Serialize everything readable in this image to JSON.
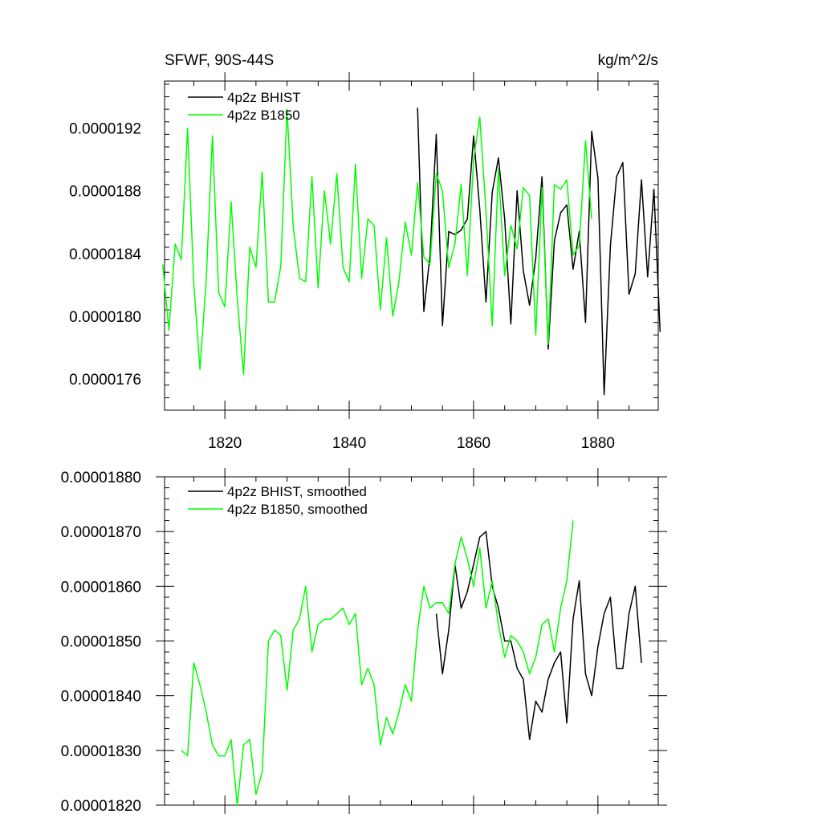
{
  "chart_data": [
    {
      "type": "line",
      "title_left": "SFWF, 90S-44S",
      "title_right": "kg/m^2/s",
      "xlim": [
        1810.3,
        1889.7
      ],
      "ylim": [
        1.74e-05,
        1.95e-05
      ],
      "x_ticks": [
        1820,
        1840,
        1860,
        1880
      ],
      "x_tick_labels": [
        "1820",
        "1840",
        "1860",
        "1880"
      ],
      "y_ticks": [
        1.76e-05,
        1.8e-05,
        1.84e-05,
        1.88e-05,
        1.92e-05
      ],
      "y_tick_labels": [
        "0.0000176",
        "0.0000180",
        "0.0000184",
        "0.0000188",
        "0.0000192"
      ],
      "legend": [
        "4p2z BHIST",
        "4p2z B1850"
      ],
      "legend_position": "top-left",
      "series": [
        {
          "name": "4p2z BHIST",
          "color": "#000000",
          "x": [
            1851,
            1852,
            1853,
            1854,
            1855,
            1856,
            1857,
            1858,
            1859,
            1860,
            1861,
            1862,
            1863,
            1864,
            1865,
            1866,
            1867,
            1868,
            1869,
            1870,
            1871,
            1872,
            1873,
            1874,
            1875,
            1876,
            1877,
            1878,
            1879,
            1880,
            1881,
            1882,
            1883,
            1884,
            1885,
            1886,
            1887,
            1888,
            1889,
            1890
          ],
          "y": [
            1.933e-05,
            1.803e-05,
            1.839e-05,
            1.916e-05,
            1.794e-05,
            1.854e-05,
            1.852e-05,
            1.855e-05,
            1.862e-05,
            1.915e-05,
            1.868e-05,
            1.809e-05,
            1.879e-05,
            1.901e-05,
            1.862e-05,
            1.795e-05,
            1.88e-05,
            1.829e-05,
            1.807e-05,
            1.837e-05,
            1.889e-05,
            1.779e-05,
            1.848e-05,
            1.866e-05,
            1.871e-05,
            1.83e-05,
            1.854e-05,
            1.796e-05,
            1.918e-05,
            1.888e-05,
            1.75e-05,
            1.845e-05,
            1.889e-05,
            1.898e-05,
            1.814e-05,
            1.827e-05,
            1.887e-05,
            1.825e-05,
            1.881e-05,
            1.79e-05
          ]
        },
        {
          "name": "4p2z B1850",
          "color": "#00ff00",
          "x": [
            1810,
            1811,
            1812,
            1813,
            1814,
            1815,
            1816,
            1817,
            1818,
            1819,
            1820,
            1821,
            1822,
            1823,
            1824,
            1825,
            1826,
            1827,
            1828,
            1829,
            1830,
            1831,
            1832,
            1833,
            1834,
            1835,
            1836,
            1837,
            1838,
            1839,
            1840,
            1841,
            1842,
            1843,
            1844,
            1845,
            1846,
            1847,
            1848,
            1849,
            1850,
            1851,
            1852,
            1853,
            1854,
            1855,
            1856,
            1857,
            1858,
            1859,
            1860,
            1861,
            1862,
            1863,
            1864,
            1865,
            1866,
            1867,
            1868,
            1869,
            1870,
            1871,
            1872,
            1873,
            1874,
            1875,
            1876,
            1877,
            1878,
            1879
          ],
          "y": [
            1.833e-05,
            1.791e-05,
            1.846e-05,
            1.836e-05,
            1.92e-05,
            1.821e-05,
            1.766e-05,
            1.823e-05,
            1.915e-05,
            1.815e-05,
            1.806e-05,
            1.873e-05,
            1.811e-05,
            1.763e-05,
            1.844e-05,
            1.831e-05,
            1.892e-05,
            1.809e-05,
            1.809e-05,
            1.832e-05,
            1.932e-05,
            1.857e-05,
            1.824e-05,
            1.822e-05,
            1.889e-05,
            1.818e-05,
            1.88e-05,
            1.846e-05,
            1.891e-05,
            1.831e-05,
            1.822e-05,
            1.897e-05,
            1.824e-05,
            1.862e-05,
            1.858e-05,
            1.804e-05,
            1.85e-05,
            1.8e-05,
            1.822e-05,
            1.86e-05,
            1.839e-05,
            1.885e-05,
            1.838e-05,
            1.833e-05,
            1.891e-05,
            1.88e-05,
            1.831e-05,
            1.846e-05,
            1.884e-05,
            1.826e-05,
            1.9e-05,
            1.927e-05,
            1.867e-05,
            1.794e-05,
            1.894e-05,
            1.826e-05,
            1.858e-05,
            1.843e-05,
            1.882e-05,
            1.877e-05,
            1.788e-05,
            1.882e-05,
            1.782e-05,
            1.884e-05,
            1.881e-05,
            1.887e-05,
            1.839e-05,
            1.845e-05,
            1.912e-05,
            1.862e-05
          ]
        }
      ]
    },
    {
      "type": "line",
      "xlim": [
        1810.3,
        1889.7
      ],
      "ylim": [
        1.82e-05,
        1.88e-05
      ],
      "x_ticks": [
        1820,
        1840,
        1860,
        1880
      ],
      "y_ticks": [
        1.82e-05,
        1.83e-05,
        1.84e-05,
        1.85e-05,
        1.86e-05,
        1.87e-05,
        1.88e-05
      ],
      "y_tick_labels": [
        "0.00001820",
        "0.00001830",
        "0.00001840",
        "0.00001850",
        "0.00001860",
        "0.00001870",
        "0.00001880"
      ],
      "legend": [
        "4p2z BHIST, smoothed",
        "4p2z B1850, smoothed"
      ],
      "legend_position": "top-left",
      "series": [
        {
          "name": "4p2z BHIST, smoothed",
          "color": "#000000",
          "x": [
            1854,
            1855,
            1856,
            1857,
            1858,
            1859,
            1860,
            1861,
            1862,
            1863,
            1864,
            1865,
            1866,
            1867,
            1868,
            1869,
            1870,
            1871,
            1872,
            1873,
            1874,
            1875,
            1876,
            1877,
            1878,
            1879,
            1880,
            1881,
            1882,
            1883,
            1884,
            1885,
            1886,
            1887
          ],
          "y": [
            1.855e-05,
            1.844e-05,
            1.852e-05,
            1.864e-05,
            1.856e-05,
            1.859e-05,
            1.864e-05,
            1.869e-05,
            1.87e-05,
            1.86e-05,
            1.856e-05,
            1.85e-05,
            1.85e-05,
            1.845e-05,
            1.843e-05,
            1.832e-05,
            1.839e-05,
            1.837e-05,
            1.843e-05,
            1.846e-05,
            1.848e-05,
            1.835e-05,
            1.854e-05,
            1.861e-05,
            1.844e-05,
            1.84e-05,
            1.849e-05,
            1.855e-05,
            1.858e-05,
            1.845e-05,
            1.845e-05,
            1.855e-05,
            1.86e-05,
            1.846e-05
          ]
        },
        {
          "name": "4p2z B1850, smoothed",
          "color": "#00ff00",
          "x": [
            1813,
            1814,
            1815,
            1816,
            1817,
            1818,
            1819,
            1820,
            1821,
            1822,
            1823,
            1824,
            1825,
            1826,
            1827,
            1828,
            1829,
            1830,
            1831,
            1832,
            1833,
            1834,
            1835,
            1836,
            1837,
            1838,
            1839,
            1840,
            1841,
            1842,
            1843,
            1844,
            1845,
            1846,
            1847,
            1848,
            1849,
            1850,
            1851,
            1852,
            1853,
            1854,
            1855,
            1856,
            1857,
            1858,
            1859,
            1860,
            1861,
            1862,
            1863,
            1864,
            1865,
            1866,
            1867,
            1868,
            1869,
            1870,
            1871,
            1872,
            1873,
            1874,
            1875,
            1876
          ],
          "y": [
            1.83e-05,
            1.829e-05,
            1.846e-05,
            1.842e-05,
            1.837e-05,
            1.831e-05,
            1.829e-05,
            1.829e-05,
            1.832e-05,
            1.82e-05,
            1.831e-05,
            1.832e-05,
            1.822e-05,
            1.826e-05,
            1.85e-05,
            1.852e-05,
            1.851e-05,
            1.841e-05,
            1.852e-05,
            1.854e-05,
            1.86e-05,
            1.848e-05,
            1.853e-05,
            1.854e-05,
            1.854e-05,
            1.855e-05,
            1.856e-05,
            1.853e-05,
            1.855e-05,
            1.842e-05,
            1.845e-05,
            1.842e-05,
            1.831e-05,
            1.836e-05,
            1.833e-05,
            1.837e-05,
            1.842e-05,
            1.839e-05,
            1.852e-05,
            1.86e-05,
            1.856e-05,
            1.857e-05,
            1.857e-05,
            1.855e-05,
            1.864e-05,
            1.869e-05,
            1.865e-05,
            1.86e-05,
            1.867e-05,
            1.856e-05,
            1.861e-05,
            1.853e-05,
            1.847e-05,
            1.851e-05,
            1.85e-05,
            1.848e-05,
            1.844e-05,
            1.847e-05,
            1.853e-05,
            1.854e-05,
            1.848e-05,
            1.856e-05,
            1.861e-05,
            1.872e-05
          ]
        }
      ]
    }
  ]
}
